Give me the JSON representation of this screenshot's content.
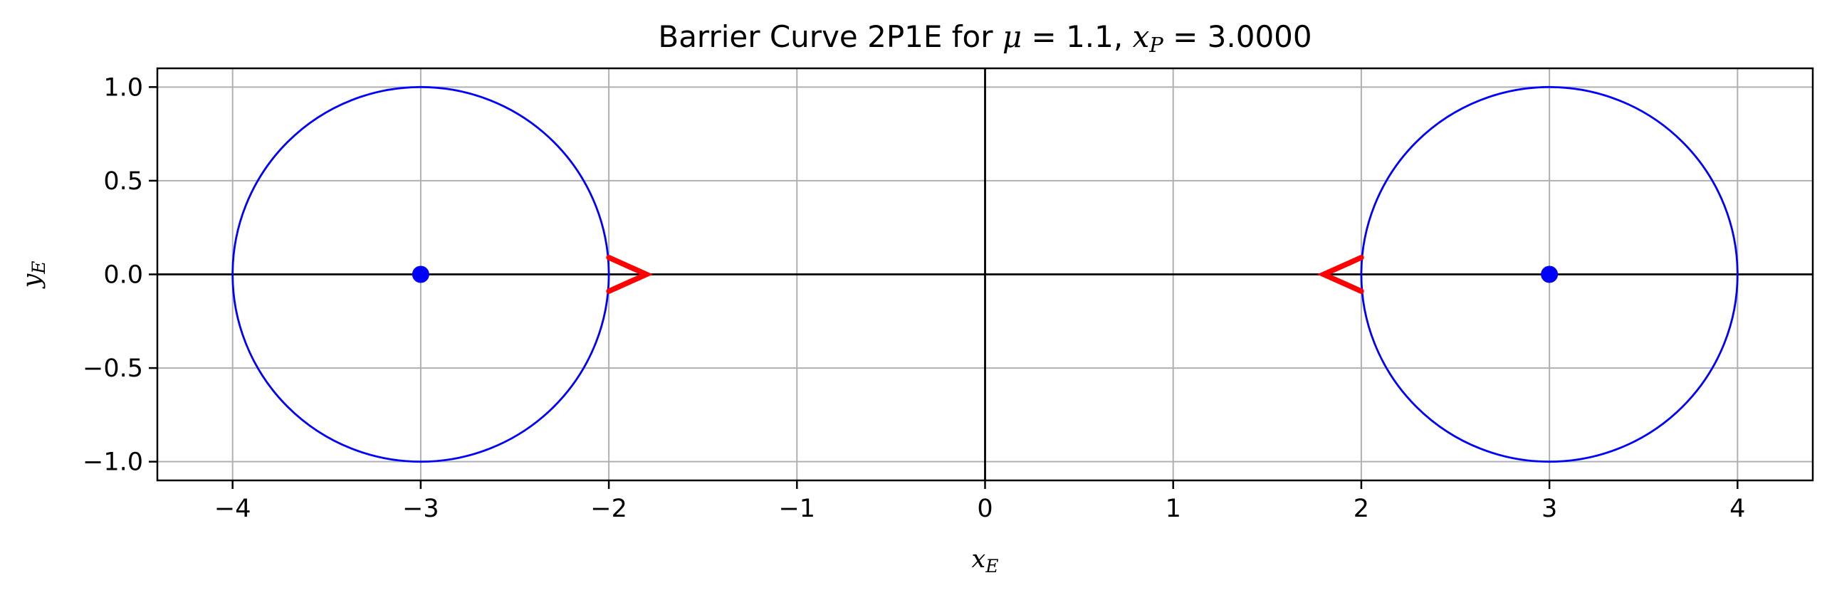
{
  "chart_data": {
    "type": "line",
    "title": {
      "prefix": "Barrier Curve 2P1E for ",
      "mu_symbol": "μ",
      "mu_text": " = 1.1, ",
      "xp_var": "x",
      "xp_sub": "P",
      "xp_text": " = 3.0000"
    },
    "xlabel": {
      "var": "x",
      "sub": "E"
    },
    "ylabel": {
      "var": "y",
      "sub": "E"
    },
    "xlim": [
      -4.4,
      4.4
    ],
    "ylim": [
      -1.1,
      1.1
    ],
    "grid": true,
    "xticks": [
      -4,
      -3,
      -2,
      -1,
      0,
      1,
      2,
      3,
      4
    ],
    "xtick_labels": [
      "−4",
      "−3",
      "−2",
      "−1",
      "0",
      "1",
      "2",
      "3",
      "4"
    ],
    "yticks": [
      1.0,
      0.5,
      0.0,
      -0.5,
      -1.0
    ],
    "ytick_labels": [
      "1.0",
      "0.5",
      "0.0",
      "−0.5",
      "−1.0"
    ],
    "reference_lines": {
      "x": 0,
      "y": 0,
      "color": "#000000"
    },
    "circles": [
      {
        "cx": -3,
        "cy": 0,
        "r": 1,
        "color": "#0000ff"
      },
      {
        "cx": 3,
        "cy": 0,
        "r": 1,
        "color": "#0000ff"
      }
    ],
    "points": [
      {
        "x": -3,
        "y": 0,
        "color": "#0000ff"
      },
      {
        "x": 3,
        "y": 0,
        "color": "#0000ff"
      }
    ],
    "arrow_markers": [
      {
        "points": [
          [
            -2.0,
            0.09
          ],
          [
            -1.8,
            0.0
          ],
          [
            -2.0,
            -0.09
          ]
        ],
        "color": "#ff0000"
      },
      {
        "points": [
          [
            2.0,
            0.09
          ],
          [
            1.8,
            0.0
          ],
          [
            2.0,
            -0.09
          ]
        ],
        "color": "#ff0000"
      }
    ]
  }
}
